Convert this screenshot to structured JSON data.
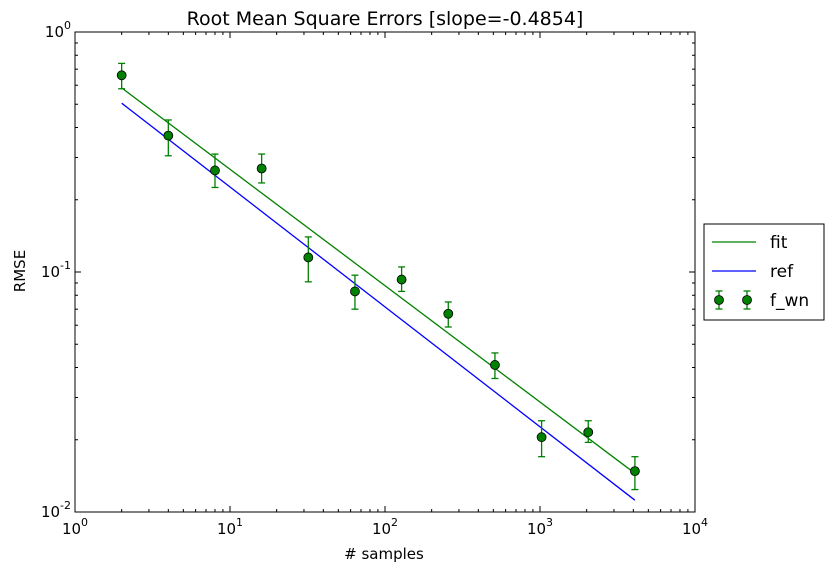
{
  "chart_data": {
    "type": "scatter",
    "title": "Root Mean Square Errors [slope=-0.4854]",
    "xlabel": "# samples",
    "ylabel": "RMSE",
    "xscale": "log",
    "yscale": "log",
    "xlim": [
      1,
      10000
    ],
    "ylim": [
      0.01,
      1
    ],
    "x_ticks": [
      {
        "value": 1,
        "base": "10",
        "exp": "0"
      },
      {
        "value": 10,
        "base": "10",
        "exp": "1"
      },
      {
        "value": 100,
        "base": "10",
        "exp": "2"
      },
      {
        "value": 1000,
        "base": "10",
        "exp": "3"
      },
      {
        "value": 10000,
        "base": "10",
        "exp": "4"
      }
    ],
    "y_ticks": [
      {
        "value": 0.01,
        "base": "10",
        "exp": "-2"
      },
      {
        "value": 0.1,
        "base": "10",
        "exp": "-1"
      },
      {
        "value": 1,
        "base": "10",
        "exp": "0"
      }
    ],
    "grid": false,
    "legend_position": "outside-right",
    "series": [
      {
        "name": "fit",
        "kind": "line",
        "color": "#008000",
        "x": [
          2,
          4096
        ],
        "y": [
          0.585,
          0.0145
        ]
      },
      {
        "name": "ref",
        "kind": "line",
        "color": "#0000ff",
        "x": [
          2,
          4096
        ],
        "y": [
          0.505,
          0.0112
        ]
      },
      {
        "name": "f_wn",
        "kind": "errorbar",
        "color": "#008000",
        "x": [
          2,
          4,
          8,
          16,
          32,
          64,
          128,
          256,
          512,
          1024,
          2048,
          4096
        ],
        "y": [
          0.66,
          0.37,
          0.265,
          0.27,
          0.115,
          0.083,
          0.093,
          0.067,
          0.041,
          0.0205,
          0.0215,
          0.0148
        ],
        "yerr_low": [
          0.58,
          0.305,
          0.225,
          0.235,
          0.091,
          0.07,
          0.083,
          0.059,
          0.036,
          0.017,
          0.0195,
          0.0124
        ],
        "yerr_high": [
          0.74,
          0.43,
          0.31,
          0.31,
          0.14,
          0.097,
          0.105,
          0.075,
          0.046,
          0.024,
          0.024,
          0.017
        ]
      }
    ]
  }
}
